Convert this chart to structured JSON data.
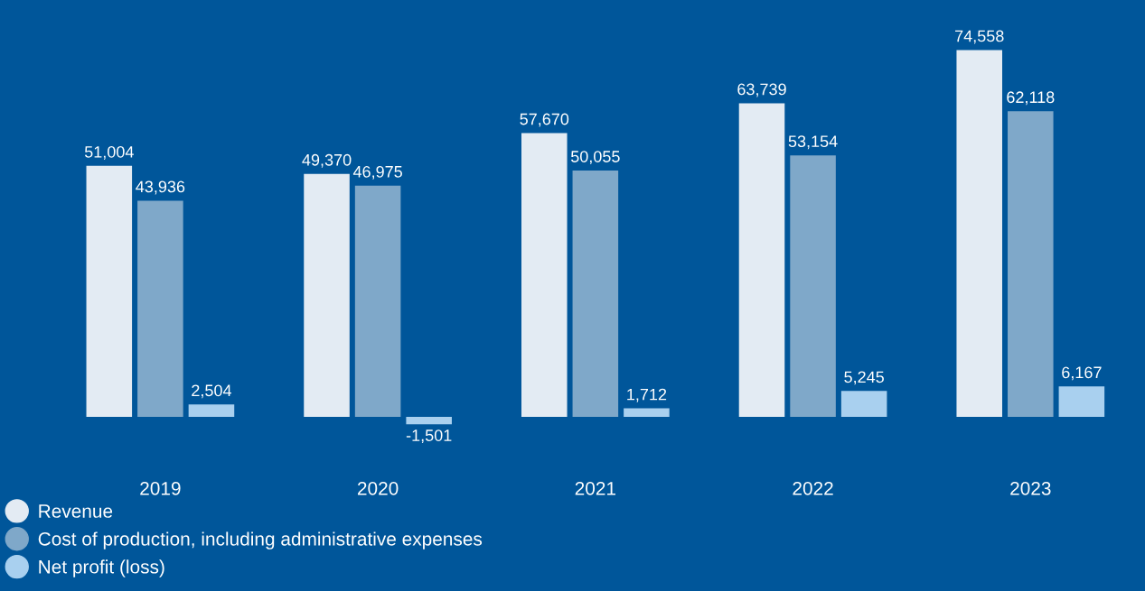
{
  "chart_data": {
    "type": "bar",
    "categories": [
      "2019",
      "2020",
      "2021",
      "2022",
      "2023"
    ],
    "series": [
      {
        "name": "Revenue",
        "color": "#e3ebf3",
        "values": [
          51004,
          49370,
          57670,
          63739,
          74558
        ],
        "value_labels": [
          "51,004",
          "49,370",
          "57,670",
          "63,739",
          "74,558"
        ]
      },
      {
        "name": "Cost of production, including administrative expenses",
        "color": "#7fa8c9",
        "values": [
          43936,
          46975,
          50055,
          53154,
          62118
        ],
        "value_labels": [
          "43,936",
          "46,975",
          "50,055",
          "53,154",
          "62,118"
        ]
      },
      {
        "name": "Net profit (loss)",
        "color": "#a9d0ef",
        "values": [
          2504,
          -1501,
          1712,
          5245,
          6167
        ],
        "value_labels": [
          "2,504",
          "-1,501",
          "1,712",
          "5,245",
          "6,167"
        ]
      }
    ],
    "legend": "bottom left",
    "grid": false
  }
}
